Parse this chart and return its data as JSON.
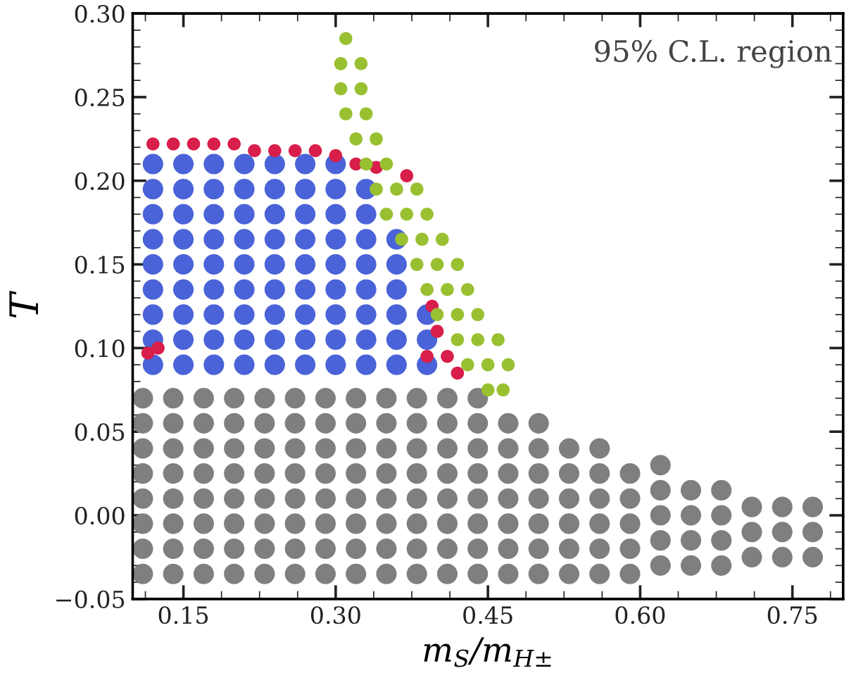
{
  "chart_data": {
    "type": "scatter",
    "xlabel": "m$_{S}$/m$_{H±}$",
    "ylabel": "T",
    "xlim": [
      0.1,
      0.8
    ],
    "ylim": [
      -0.05,
      0.3
    ],
    "xticks": [
      {
        "value": 0.15,
        "label": "0.15"
      },
      {
        "value": 0.3,
        "label": "0.30"
      },
      {
        "value": 0.45,
        "label": "0.45"
      },
      {
        "value": 0.6,
        "label": "0.60"
      },
      {
        "value": 0.75,
        "label": "0.75"
      }
    ],
    "yticks": [
      {
        "value": -0.05,
        "label": "−0.05"
      },
      {
        "value": 0.0,
        "label": "0.00"
      },
      {
        "value": 0.05,
        "label": "0.05"
      },
      {
        "value": 0.1,
        "label": "0.10"
      },
      {
        "value": 0.15,
        "label": "0.15"
      },
      {
        "value": 0.2,
        "label": "0.20"
      },
      {
        "value": 0.25,
        "label": "0.25"
      },
      {
        "value": 0.3,
        "label": "0.30"
      }
    ],
    "marker": "circle",
    "grid": false,
    "annotations": [
      "95% C.L. region"
    ],
    "series": [
      {
        "color": "#7f7f7f",
        "x": [
          0.11,
          0.11,
          0.11,
          0.11,
          0.11,
          0.11,
          0.11,
          0.11,
          0.14,
          0.14,
          0.14,
          0.14,
          0.14,
          0.14,
          0.14,
          0.14,
          0.17,
          0.17,
          0.17,
          0.17,
          0.17,
          0.17,
          0.17,
          0.17,
          0.2,
          0.2,
          0.2,
          0.2,
          0.2,
          0.2,
          0.2,
          0.2,
          0.23,
          0.23,
          0.23,
          0.23,
          0.23,
          0.23,
          0.23,
          0.23,
          0.26,
          0.26,
          0.26,
          0.26,
          0.26,
          0.26,
          0.26,
          0.26,
          0.29,
          0.29,
          0.29,
          0.29,
          0.29,
          0.29,
          0.29,
          0.29,
          0.32,
          0.32,
          0.32,
          0.32,
          0.32,
          0.32,
          0.32,
          0.32,
          0.35,
          0.35,
          0.35,
          0.35,
          0.35,
          0.35,
          0.35,
          0.35,
          0.38,
          0.38,
          0.38,
          0.38,
          0.38,
          0.38,
          0.38,
          0.38,
          0.41,
          0.41,
          0.41,
          0.41,
          0.41,
          0.41,
          0.41,
          0.41,
          0.44,
          0.44,
          0.44,
          0.44,
          0.44,
          0.44,
          0.44,
          0.44,
          0.47,
          0.47,
          0.47,
          0.47,
          0.47,
          0.47,
          0.47,
          0.5,
          0.5,
          0.5,
          0.5,
          0.5,
          0.5,
          0.5,
          0.53,
          0.53,
          0.53,
          0.53,
          0.53,
          0.53,
          0.56,
          0.56,
          0.56,
          0.56,
          0.56,
          0.56,
          0.59,
          0.59,
          0.59,
          0.59,
          0.59,
          0.62,
          0.62,
          0.62,
          0.62,
          0.62,
          0.65,
          0.65,
          0.65,
          0.65,
          0.68,
          0.68,
          0.68,
          0.68,
          0.71,
          0.71,
          0.71,
          0.74,
          0.74,
          0.74,
          0.77,
          0.77,
          0.77
        ],
        "values": [
          -0.035,
          -0.02,
          -0.005,
          0.01,
          0.025,
          0.04,
          0.055,
          0.07,
          -0.035,
          -0.02,
          -0.005,
          0.01,
          0.025,
          0.04,
          0.055,
          0.07,
          -0.035,
          -0.02,
          -0.005,
          0.01,
          0.025,
          0.04,
          0.055,
          0.07,
          -0.035,
          -0.02,
          -0.005,
          0.01,
          0.025,
          0.04,
          0.055,
          0.07,
          -0.035,
          -0.02,
          -0.005,
          0.01,
          0.025,
          0.04,
          0.055,
          0.07,
          -0.035,
          -0.02,
          -0.005,
          0.01,
          0.025,
          0.04,
          0.055,
          0.07,
          -0.035,
          -0.02,
          -0.005,
          0.01,
          0.025,
          0.04,
          0.055,
          0.07,
          -0.035,
          -0.02,
          -0.005,
          0.01,
          0.025,
          0.04,
          0.055,
          0.07,
          -0.035,
          -0.02,
          -0.005,
          0.01,
          0.025,
          0.04,
          0.055,
          0.07,
          -0.035,
          -0.02,
          -0.005,
          0.01,
          0.025,
          0.04,
          0.055,
          0.07,
          -0.035,
          -0.02,
          -0.005,
          0.01,
          0.025,
          0.04,
          0.055,
          0.07,
          -0.035,
          -0.02,
          -0.005,
          0.01,
          0.025,
          0.04,
          0.055,
          0.07,
          -0.035,
          -0.02,
          -0.005,
          0.01,
          0.025,
          0.04,
          0.055,
          -0.035,
          -0.02,
          -0.005,
          0.01,
          0.025,
          0.04,
          0.055,
          -0.035,
          -0.02,
          -0.005,
          0.01,
          0.025,
          0.04,
          -0.035,
          -0.02,
          -0.005,
          0.01,
          0.025,
          0.04,
          -0.035,
          -0.02,
          -0.005,
          0.01,
          0.025,
          -0.03,
          -0.015,
          0.0,
          0.015,
          0.03,
          -0.03,
          -0.015,
          0.0,
          0.015,
          -0.03,
          -0.015,
          0.0,
          0.015,
          -0.025,
          -0.01,
          0.005,
          -0.025,
          -0.01,
          0.005,
          -0.025,
          -0.01,
          0.005
        ]
      },
      {
        "color": "#4a63d8",
        "x": [
          0.12,
          0.12,
          0.12,
          0.12,
          0.12,
          0.12,
          0.12,
          0.12,
          0.12,
          0.15,
          0.15,
          0.15,
          0.15,
          0.15,
          0.15,
          0.15,
          0.15,
          0.15,
          0.18,
          0.18,
          0.18,
          0.18,
          0.18,
          0.18,
          0.18,
          0.18,
          0.18,
          0.21,
          0.21,
          0.21,
          0.21,
          0.21,
          0.21,
          0.21,
          0.21,
          0.21,
          0.24,
          0.24,
          0.24,
          0.24,
          0.24,
          0.24,
          0.24,
          0.24,
          0.24,
          0.27,
          0.27,
          0.27,
          0.27,
          0.27,
          0.27,
          0.27,
          0.27,
          0.27,
          0.3,
          0.3,
          0.3,
          0.3,
          0.3,
          0.3,
          0.3,
          0.3,
          0.3,
          0.33,
          0.33,
          0.33,
          0.33,
          0.33,
          0.33,
          0.33,
          0.33,
          0.36,
          0.36,
          0.36,
          0.36,
          0.36,
          0.36,
          0.39,
          0.39,
          0.39
        ],
        "values": [
          0.09,
          0.105,
          0.12,
          0.135,
          0.15,
          0.165,
          0.18,
          0.195,
          0.21,
          0.09,
          0.105,
          0.12,
          0.135,
          0.15,
          0.165,
          0.18,
          0.195,
          0.21,
          0.09,
          0.105,
          0.12,
          0.135,
          0.15,
          0.165,
          0.18,
          0.195,
          0.21,
          0.09,
          0.105,
          0.12,
          0.135,
          0.15,
          0.165,
          0.18,
          0.195,
          0.21,
          0.09,
          0.105,
          0.12,
          0.135,
          0.15,
          0.165,
          0.18,
          0.195,
          0.21,
          0.09,
          0.105,
          0.12,
          0.135,
          0.15,
          0.165,
          0.18,
          0.195,
          0.21,
          0.09,
          0.105,
          0.12,
          0.135,
          0.15,
          0.165,
          0.18,
          0.195,
          0.21,
          0.09,
          0.105,
          0.12,
          0.135,
          0.15,
          0.165,
          0.18,
          0.195,
          0.09,
          0.105,
          0.12,
          0.135,
          0.15,
          0.165,
          0.09,
          0.105,
          0.12
        ]
      },
      {
        "color": "#d81e4a",
        "x": [
          0.12,
          0.14,
          0.16,
          0.18,
          0.2,
          0.22,
          0.24,
          0.26,
          0.28,
          0.3,
          0.32,
          0.34,
          0.37,
          0.395,
          0.4,
          0.41,
          0.42,
          0.39,
          0.115,
          0.125
        ],
        "values": [
          0.222,
          0.222,
          0.222,
          0.222,
          0.222,
          0.218,
          0.218,
          0.218,
          0.218,
          0.215,
          0.21,
          0.208,
          0.203,
          0.125,
          0.11,
          0.095,
          0.085,
          0.095,
          0.097,
          0.1
        ]
      },
      {
        "color": "#99c031",
        "x": [
          0.31,
          0.305,
          0.325,
          0.305,
          0.325,
          0.31,
          0.33,
          0.32,
          0.34,
          0.33,
          0.35,
          0.34,
          0.36,
          0.38,
          0.35,
          0.37,
          0.39,
          0.365,
          0.385,
          0.405,
          0.38,
          0.4,
          0.42,
          0.39,
          0.41,
          0.43,
          0.4,
          0.42,
          0.44,
          0.42,
          0.44,
          0.46,
          0.43,
          0.45,
          0.47,
          0.45,
          0.465
        ],
        "values": [
          0.285,
          0.27,
          0.27,
          0.255,
          0.255,
          0.24,
          0.24,
          0.225,
          0.225,
          0.21,
          0.21,
          0.195,
          0.195,
          0.195,
          0.18,
          0.18,
          0.18,
          0.165,
          0.165,
          0.165,
          0.15,
          0.15,
          0.15,
          0.135,
          0.135,
          0.135,
          0.12,
          0.12,
          0.12,
          0.105,
          0.105,
          0.105,
          0.09,
          0.09,
          0.09,
          0.075,
          0.075
        ]
      }
    ]
  }
}
